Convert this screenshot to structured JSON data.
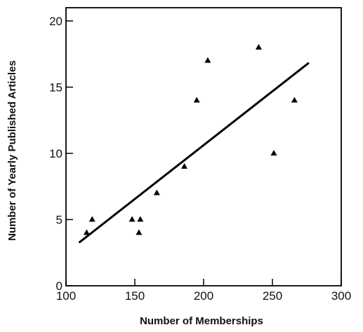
{
  "chart_data": {
    "type": "scatter",
    "title": "",
    "xlabel": "Number of Memberships",
    "ylabel": "Number of Yearly Published Articles",
    "xlim": [
      100,
      300
    ],
    "ylim": [
      0,
      21
    ],
    "xticks": [
      100,
      150,
      200,
      250,
      300
    ],
    "yticks": [
      0,
      5,
      10,
      15,
      20
    ],
    "marker": "triangle",
    "grid": false,
    "legend": "none",
    "points": [
      {
        "x": 115,
        "y": 4
      },
      {
        "x": 119,
        "y": 5
      },
      {
        "x": 148,
        "y": 5
      },
      {
        "x": 153,
        "y": 4
      },
      {
        "x": 154,
        "y": 5
      },
      {
        "x": 166,
        "y": 7
      },
      {
        "x": 186,
        "y": 9
      },
      {
        "x": 195,
        "y": 14
      },
      {
        "x": 203,
        "y": 17
      },
      {
        "x": 240,
        "y": 18
      },
      {
        "x": 251,
        "y": 10
      },
      {
        "x": 266,
        "y": 14
      }
    ],
    "fit_line": {
      "x": [
        110,
        276
      ],
      "y": [
        3.3,
        16.8
      ]
    }
  }
}
